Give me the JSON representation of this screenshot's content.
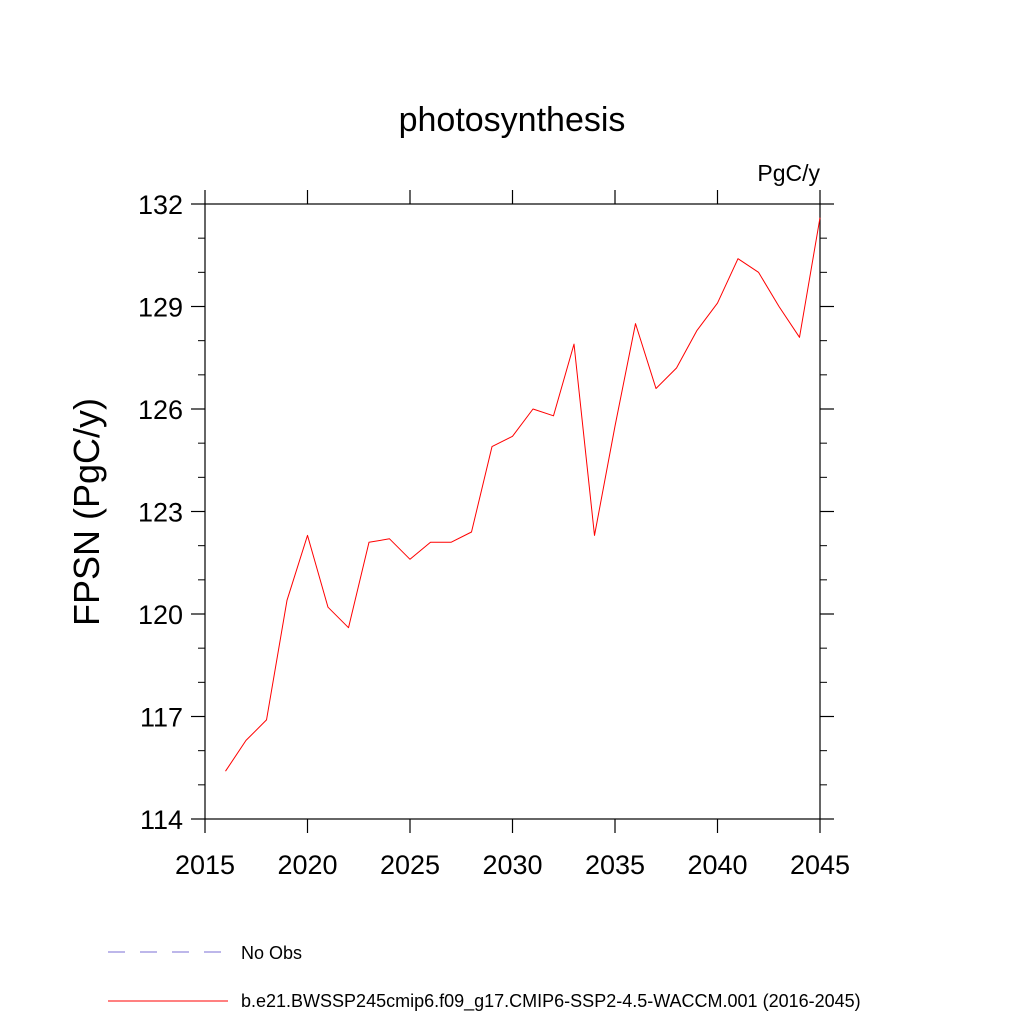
{
  "chart_data": {
    "type": "line",
    "title": "photosynthesis",
    "units_label": "PgC/y",
    "xlabel": "",
    "ylabel": "FPSN  (PgC/y)",
    "xlim": [
      2015,
      2045
    ],
    "ylim": [
      114,
      132
    ],
    "xticks": [
      2015,
      2020,
      2025,
      2030,
      2035,
      2040,
      2045
    ],
    "yticks": [
      114,
      117,
      120,
      123,
      126,
      129,
      132
    ],
    "grid": false,
    "legend_position": "bottom",
    "legend": [
      {
        "label": "No Obs",
        "color": "#7b6fd6",
        "style": "dashed"
      },
      {
        "label": "b.e21.BWSSP245cmip6.f09_g17.CMIP6-SSP2-4.5-WACCM.001 (2016-2045)",
        "color": "#ff0000",
        "style": "solid"
      }
    ],
    "series": [
      {
        "name": "b.e21.BWSSP245cmip6.f09_g17.CMIP6-SSP2-4.5-WACCM.001 (2016-2045)",
        "color": "#ff0000",
        "x": [
          2016,
          2017,
          2018,
          2019,
          2020,
          2021,
          2022,
          2023,
          2024,
          2025,
          2026,
          2027,
          2028,
          2029,
          2030,
          2031,
          2032,
          2033,
          2034,
          2035,
          2036,
          2037,
          2038,
          2039,
          2040,
          2041,
          2042,
          2043,
          2044,
          2045
        ],
        "y": [
          115.4,
          116.3,
          116.9,
          120.4,
          122.3,
          120.2,
          119.6,
          122.1,
          122.2,
          121.6,
          122.1,
          122.1,
          122.4,
          124.9,
          125.2,
          126.0,
          125.8,
          127.9,
          122.3,
          125.5,
          128.5,
          126.6,
          127.2,
          128.3,
          129.1,
          130.4,
          130.0,
          129.0,
          128.1,
          131.6
        ]
      }
    ]
  }
}
